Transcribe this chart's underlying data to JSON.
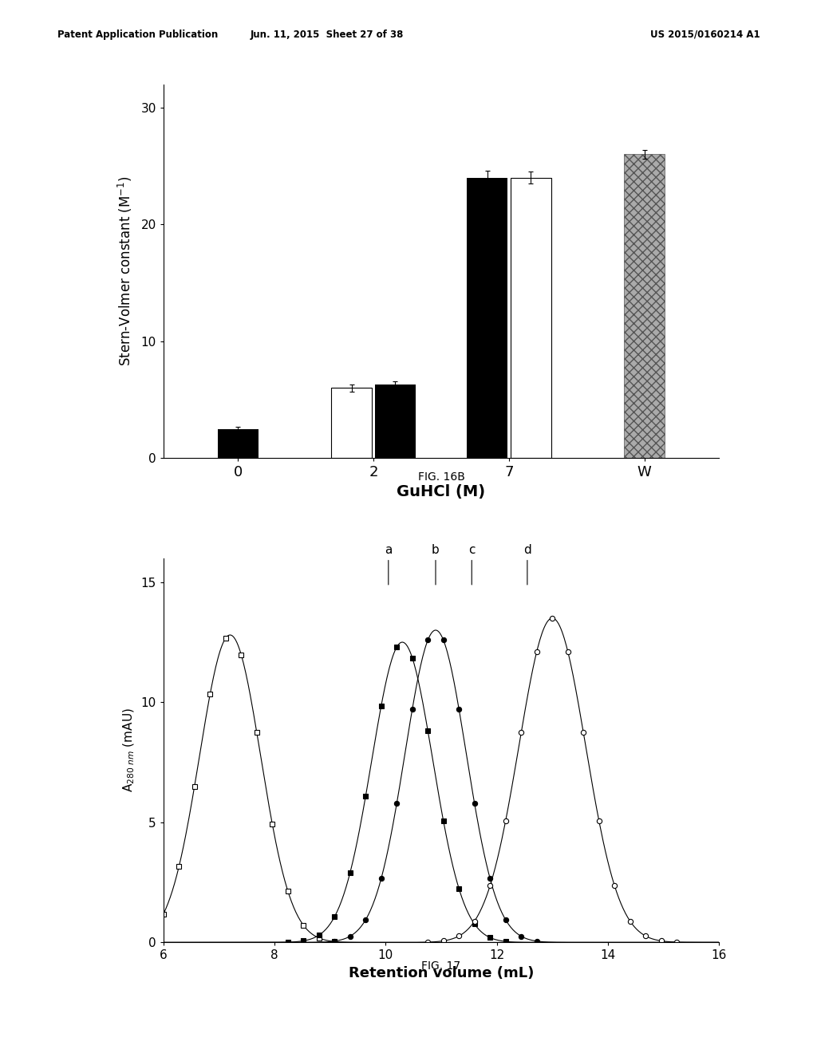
{
  "header_left": "Patent Application Publication",
  "header_mid": "Jun. 11, 2015  Sheet 27 of 38",
  "header_right": "US 2015/0160214 A1",
  "bar_categories": [
    "0",
    "2",
    "7",
    "W"
  ],
  "bar_black": [
    2.5,
    6.3,
    24.0,
    null
  ],
  "bar_white": [
    null,
    6.0,
    24.0,
    null
  ],
  "bar_gray": [
    null,
    null,
    null,
    26.0
  ],
  "bar_black_err": [
    0.2,
    0.3,
    0.6,
    null
  ],
  "bar_white_err": [
    null,
    0.3,
    0.5,
    null
  ],
  "bar_gray_err": [
    null,
    null,
    null,
    0.4
  ],
  "bar_ylabel": "Stern-Volmer constant (M$^{-1}$)",
  "bar_xlabel": "GuHCl (M)",
  "bar_ylim": [
    0,
    32
  ],
  "bar_yticks": [
    0,
    10,
    20,
    30
  ],
  "fig16b_label": "FIG. 16B",
  "vline_positions": [
    10.05,
    10.9,
    11.55,
    12.55
  ],
  "vline_labels": [
    "a",
    "b",
    "c",
    "d"
  ],
  "curve_ylabel": "A$_{280\\ nm}$ (mAU)",
  "curve_xlabel": "Retention volume (mL)",
  "curve_xlim": [
    6,
    16
  ],
  "curve_ylim": [
    0,
    16
  ],
  "curve_yticks": [
    0,
    5,
    10,
    15
  ],
  "curve_xticks": [
    6,
    8,
    10,
    12,
    14,
    16
  ],
  "fig17_label": "FIG. 17",
  "bg_color": "#ffffff",
  "text_color": "#000000"
}
